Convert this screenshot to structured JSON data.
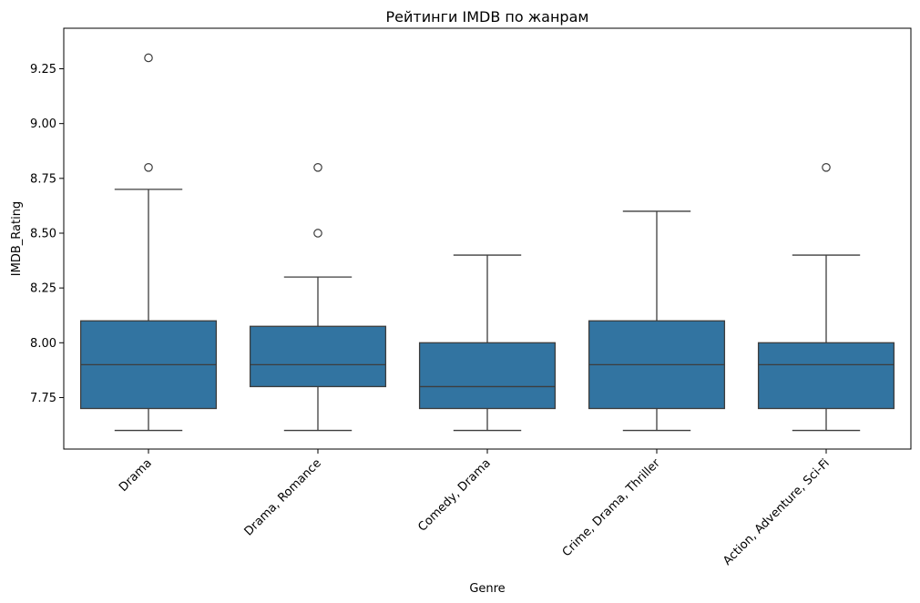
{
  "chart_data": {
    "type": "box",
    "title": "Рейтинги IMDB по жанрам",
    "xlabel": "Genre",
    "ylabel": "IMDB_Rating",
    "ylim": [
      7.515,
      9.435
    ],
    "yticks": [
      7.75,
      8.0,
      8.25,
      8.5,
      8.75,
      9.0,
      9.25
    ],
    "ytick_labels": [
      "7.75",
      "8.00",
      "8.25",
      "8.50",
      "8.75",
      "9.00",
      "9.25"
    ],
    "box_color": "#3274a1",
    "categories": [
      "Drama",
      "Drama, Romance",
      "Comedy, Drama",
      "Crime, Drama, Thriller",
      "Action, Adventure, Sci-Fi"
    ],
    "boxes": [
      {
        "whisker_low": 7.6,
        "q1": 7.7,
        "median": 7.9,
        "q3": 8.1,
        "whisker_high": 8.7,
        "outliers": [
          8.8,
          9.3
        ]
      },
      {
        "whisker_low": 7.6,
        "q1": 7.8,
        "median": 7.9,
        "q3": 8.075,
        "whisker_high": 8.3,
        "outliers": [
          8.5,
          8.8
        ]
      },
      {
        "whisker_low": 7.6,
        "q1": 7.7,
        "median": 7.8,
        "q3": 8.0,
        "whisker_high": 8.4,
        "outliers": []
      },
      {
        "whisker_low": 7.6,
        "q1": 7.7,
        "median": 7.9,
        "q3": 8.1,
        "whisker_high": 8.6,
        "outliers": []
      },
      {
        "whisker_low": 7.6,
        "q1": 7.7,
        "median": 7.9,
        "q3": 8.0,
        "whisker_high": 8.4,
        "outliers": [
          8.8
        ]
      }
    ]
  }
}
